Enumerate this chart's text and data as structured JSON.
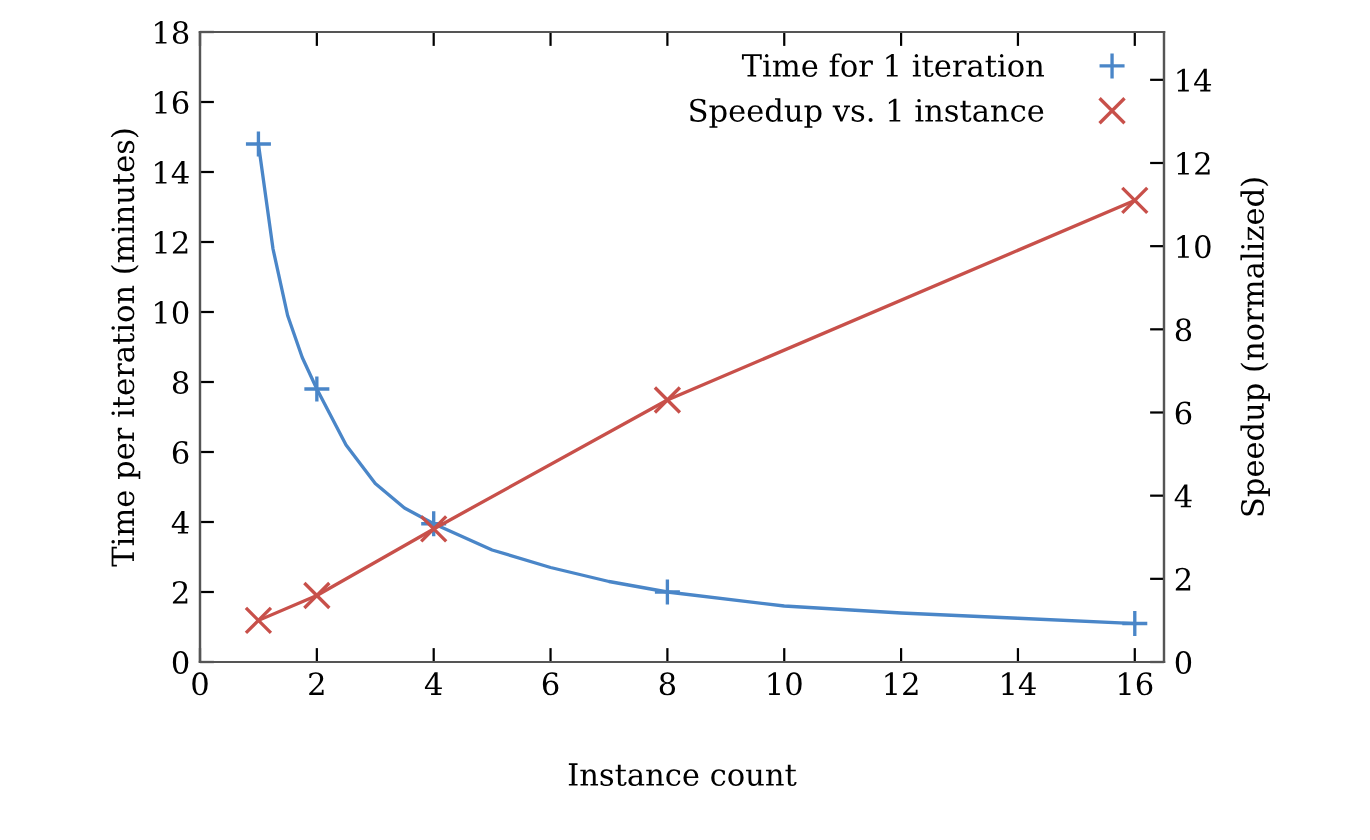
{
  "chart_data": {
    "type": "line",
    "xlabel": "Instance count",
    "ylabel": "Time per iteration (minutes)",
    "y2label": "Speedup (normalized)",
    "xlim": [
      0,
      16.5
    ],
    "xticks": [
      0,
      2,
      4,
      6,
      8,
      10,
      12,
      14,
      16
    ],
    "ylim": [
      0,
      18
    ],
    "yticks": [
      0,
      2,
      4,
      6,
      8,
      10,
      12,
      14,
      16,
      18
    ],
    "y2lim": [
      0,
      15.15
    ],
    "y2ticks": [
      0,
      2,
      4,
      6,
      8,
      10,
      12,
      14
    ],
    "x": [
      1,
      2,
      4,
      8,
      16
    ],
    "series": [
      {
        "name": "Time for 1 iteration",
        "type": "scatter",
        "color": "#4a86c8",
        "values": [
          14.8,
          7.8,
          3.95,
          2.0,
          1.1
        ],
        "marker": "plus",
        "axis": "y"
      },
      {
        "type": "line",
        "color": "#4a86c8",
        "marker": "none",
        "axis": "y",
        "x": [
          1,
          1.25,
          1.5,
          1.75,
          2,
          2.5,
          3,
          3.5,
          4,
          5,
          6,
          7,
          8,
          10,
          12,
          14,
          16
        ],
        "values": [
          14.8,
          11.8,
          9.9,
          8.7,
          7.8,
          6.2,
          5.1,
          4.4,
          3.95,
          3.2,
          2.7,
          2.3,
          2.0,
          1.6,
          1.4,
          1.25,
          1.1
        ]
      },
      {
        "name": "Speedup vs. 1 instance",
        "color": "#c8504a",
        "values": [
          1.0,
          1.6,
          3.2,
          6.3,
          11.1
        ],
        "marker": "cross",
        "axis": "y2"
      }
    ],
    "legend": "top right",
    "grid": false,
    "line_style": "solid"
  }
}
